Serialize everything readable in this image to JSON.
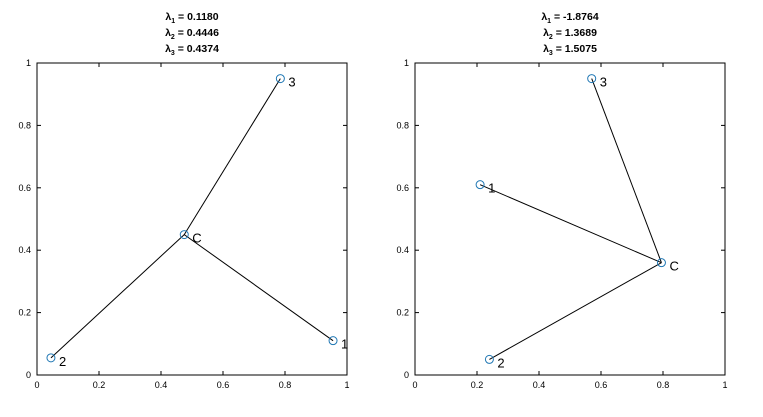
{
  "chart_data": [
    {
      "type": "scatter",
      "title_lines": [
        {
          "sym": "λ",
          "sub": "1",
          "rest": " = 0.1180"
        },
        {
          "sym": "λ",
          "sub": "2",
          "rest": " = 0.4446"
        },
        {
          "sym": "λ",
          "sub": "3",
          "rest": " = 0.4374"
        }
      ],
      "xlim": [
        0,
        1
      ],
      "ylim": [
        0,
        1
      ],
      "xticks": [
        "0",
        "0.2",
        "0.4",
        "0.6",
        "0.8",
        "1"
      ],
      "yticks": [
        "0",
        "0.2",
        "0.4",
        "0.6",
        "0.8",
        "1"
      ],
      "center": {
        "label": "C",
        "x": 0.475,
        "y": 0.45
      },
      "points": [
        {
          "label": "1",
          "x": 0.955,
          "y": 0.11
        },
        {
          "label": "2",
          "x": 0.045,
          "y": 0.055
        },
        {
          "label": "3",
          "x": 0.785,
          "y": 0.95
        }
      ],
      "grid": false,
      "marker_color": "#1f77b4",
      "line_color": "#000000"
    },
    {
      "type": "scatter",
      "title_lines": [
        {
          "sym": "λ",
          "sub": "1",
          "rest": " = -1.8764"
        },
        {
          "sym": "λ",
          "sub": "2",
          "rest": " = 1.3689"
        },
        {
          "sym": "λ",
          "sub": "3",
          "rest": " = 1.5075"
        }
      ],
      "xlim": [
        0,
        1
      ],
      "ylim": [
        0,
        1
      ],
      "xticks": [
        "0",
        "0.2",
        "0.4",
        "0.6",
        "0.8",
        "1"
      ],
      "yticks": [
        "0",
        "0.2",
        "0.4",
        "0.6",
        "0.8",
        "1"
      ],
      "center": {
        "label": "C",
        "x": 0.795,
        "y": 0.36
      },
      "points": [
        {
          "label": "1",
          "x": 0.21,
          "y": 0.61
        },
        {
          "label": "2",
          "x": 0.24,
          "y": 0.05
        },
        {
          "label": "3",
          "x": 0.57,
          "y": 0.95
        }
      ],
      "grid": false,
      "marker_color": "#1f77b4",
      "line_color": "#000000"
    }
  ]
}
